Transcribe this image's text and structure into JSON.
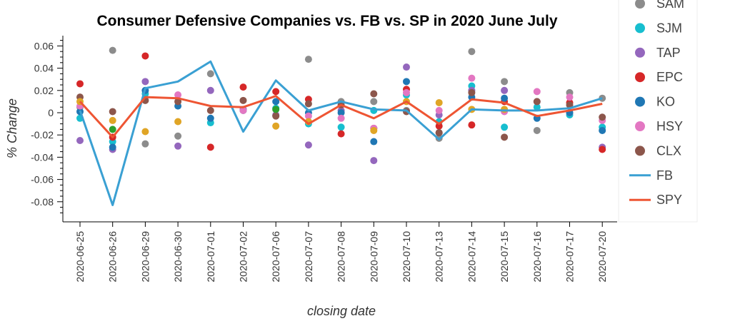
{
  "chart_data": {
    "type": "scatter",
    "title": "Consumer Defensive Companies vs. FB vs. SP in 2020 June July",
    "xlabel": "closing date",
    "ylabel": "% Change",
    "categories": [
      "2020-06-25",
      "2020-06-26",
      "2020-06-29",
      "2020-06-30",
      "2020-07-01",
      "2020-07-02",
      "2020-07-06",
      "2020-07-07",
      "2020-07-08",
      "2020-07-09",
      "2020-07-10",
      "2020-07-13",
      "2020-07-14",
      "2020-07-15",
      "2020-07-16",
      "2020-07-17",
      "2020-07-20"
    ],
    "ylim": [
      -0.098,
      0.07
    ],
    "yticks": [
      0.06,
      0.04,
      0.02,
      0,
      -0.02,
      -0.04,
      -0.06,
      -0.08
    ],
    "ytick_labels": [
      "0.06",
      "0.04",
      "0.02",
      "0",
      "-0.02",
      "-0.04",
      "-0.06",
      "-0.08"
    ],
    "legend_position": "right",
    "grid": false,
    "series": [
      {
        "name": "SAM",
        "kind": "scatter",
        "color": "#8c8c8c",
        "values": [
          0.005,
          0.056,
          -0.028,
          -0.021,
          0.035,
          null,
          null,
          0.048,
          0.01,
          0.01,
          0.002,
          -0.023,
          0.055,
          0.028,
          -0.016,
          0.018,
          0.013
        ]
      },
      {
        "name": "SJM",
        "kind": "scatter",
        "color": "#17becf",
        "values": [
          -0.005,
          -0.026,
          0.017,
          null,
          -0.009,
          null,
          0.004,
          -0.01,
          -0.013,
          0.002,
          0.016,
          -0.008,
          0.024,
          -0.013,
          0.005,
          -0.002,
          -0.013
        ]
      },
      {
        "name": "TAP",
        "kind": "scatter",
        "color": "#9467bd",
        "values": [
          -0.025,
          -0.033,
          0.028,
          -0.03,
          0.02,
          0.003,
          -0.002,
          -0.029,
          0.002,
          -0.043,
          0.041,
          -0.002,
          0.02,
          0.02,
          0.01,
          0.0,
          -0.031
        ]
      },
      {
        "name": "EPC",
        "kind": "scatter",
        "color": "#d62728",
        "values": [
          0.026,
          -0.022,
          0.051,
          null,
          -0.031,
          0.023,
          0.019,
          0.012,
          -0.019,
          -0.014,
          0.021,
          -0.012,
          -0.011,
          0.01,
          null,
          0.009,
          -0.033
        ]
      },
      {
        "name": "KO",
        "kind": "scatter",
        "color": "#1f77b4",
        "values": [
          0.001,
          -0.031,
          0.02,
          0.006,
          -0.005,
          0.002,
          0.01,
          0.0,
          0.0,
          -0.026,
          0.028,
          -0.018,
          0.014,
          0.013,
          -0.005,
          0.0,
          -0.016
        ]
      },
      {
        "name": "HSY",
        "kind": "scatter",
        "color": "#e377c2",
        "values": [
          0.006,
          null,
          null,
          0.016,
          null,
          0.002,
          null,
          -0.003,
          -0.005,
          -0.014,
          0.018,
          0.002,
          0.031,
          0.001,
          0.019,
          0.014,
          -0.007
        ]
      },
      {
        "name": "CLX",
        "kind": "scatter",
        "color": "#8c564b",
        "values": [
          0.014,
          0.001,
          0.011,
          0.01,
          0.002,
          0.011,
          -0.003,
          0.008,
          0.007,
          0.017,
          0.001,
          -0.018,
          0.018,
          -0.022,
          0.01,
          0.007,
          -0.004
        ]
      },
      {
        "name": "",
        "kind": "scatter",
        "color": "#2ca02c",
        "values": [
          null,
          -0.015,
          null,
          null,
          null,
          null,
          0.003,
          null,
          null,
          null,
          null,
          null,
          null,
          null,
          null,
          null,
          null
        ]
      },
      {
        "name": "",
        "kind": "scatter",
        "color": "#e0a526",
        "values": [
          0.01,
          -0.007,
          -0.017,
          -0.008,
          null,
          null,
          -0.012,
          -0.008,
          null,
          -0.016,
          0.01,
          0.009,
          0.003,
          0.003,
          null,
          null,
          null
        ]
      },
      {
        "name": "FB",
        "kind": "line",
        "color": "#3aa0d3",
        "values": [
          0.002,
          -0.083,
          0.022,
          0.028,
          0.046,
          -0.017,
          0.029,
          0.002,
          0.01,
          0.003,
          0.002,
          -0.024,
          0.003,
          0.002,
          0.002,
          0.004,
          0.013
        ]
      },
      {
        "name": "SPY",
        "kind": "line",
        "color": "#ee5533",
        "values": [
          0.01,
          -0.022,
          0.014,
          0.013,
          0.006,
          0.005,
          0.015,
          -0.01,
          0.007,
          -0.005,
          0.01,
          -0.01,
          0.012,
          0.009,
          -0.003,
          0.002,
          0.008
        ]
      }
    ]
  }
}
